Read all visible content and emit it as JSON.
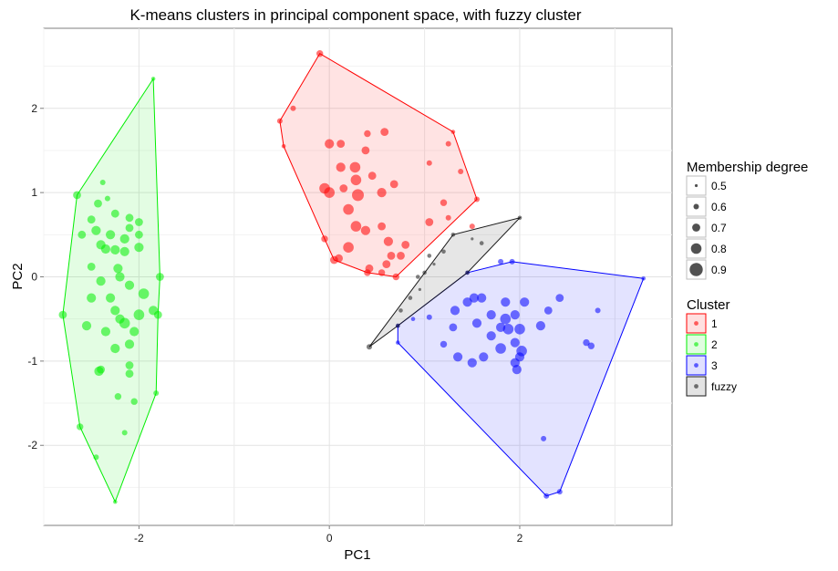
{
  "chart_data": {
    "type": "scatter",
    "title": "K-means clusters in principal component space, with fuzzy cluster",
    "xlabel": "PC1",
    "ylabel": "PC2",
    "xlim": [
      -3.0,
      3.6
    ],
    "ylim": [
      -2.95,
      2.95
    ],
    "xticks": [
      -2,
      0,
      2
    ],
    "yticks": [
      -2,
      -1,
      0,
      1,
      2
    ],
    "grid": true,
    "legend_position": "right",
    "size_legend": {
      "title": "Membership degree",
      "values": [
        0.5,
        0.6,
        0.7,
        0.8,
        0.9
      ]
    },
    "color_legend": {
      "title": "Cluster",
      "entries": [
        {
          "label": "1",
          "color": "#ff0000"
        },
        {
          "label": "2",
          "color": "#00ee00"
        },
        {
          "label": "3",
          "color": "#0000ff"
        },
        {
          "label": "fuzzy",
          "color": "#1a1a1a"
        }
      ]
    },
    "series": [
      {
        "name": "1",
        "color": "#ff0000",
        "hull": [
          [
            -0.1,
            2.65
          ],
          [
            -0.52,
            1.85
          ],
          [
            -0.48,
            1.55
          ],
          [
            -0.05,
            0.45
          ],
          [
            0.05,
            0.2
          ],
          [
            0.4,
            0.05
          ],
          [
            0.7,
            0.0
          ],
          [
            1.55,
            0.92
          ],
          [
            1.3,
            1.72
          ]
        ],
        "points": [
          [
            -0.1,
            2.65,
            0.65
          ],
          [
            -0.52,
            1.85,
            0.6
          ],
          [
            -0.38,
            2.0,
            0.6
          ],
          [
            -0.48,
            1.55,
            0.55
          ],
          [
            0.0,
            1.58,
            0.75
          ],
          [
            0.12,
            1.58,
            0.7
          ],
          [
            0.4,
            1.7,
            0.65
          ],
          [
            0.58,
            1.72,
            0.7
          ],
          [
            0.38,
            1.5,
            0.7
          ],
          [
            0.12,
            1.3,
            0.75
          ],
          [
            0.27,
            1.3,
            0.8
          ],
          [
            0.15,
            1.05,
            0.7
          ],
          [
            0.28,
            1.15,
            0.8
          ],
          [
            0.45,
            1.2,
            0.7
          ],
          [
            -0.05,
            1.05,
            0.8
          ],
          [
            0.0,
            1.0,
            0.8
          ],
          [
            0.3,
            0.97,
            0.85
          ],
          [
            0.55,
            1.0,
            0.75
          ],
          [
            0.68,
            1.1,
            0.7
          ],
          [
            1.05,
            1.35,
            0.6
          ],
          [
            1.25,
            1.58,
            0.6
          ],
          [
            1.3,
            1.72,
            0.55
          ],
          [
            1.38,
            1.25,
            0.6
          ],
          [
            1.2,
            0.88,
            0.65
          ],
          [
            1.25,
            0.7,
            0.6
          ],
          [
            1.05,
            0.65,
            0.7
          ],
          [
            0.2,
            0.8,
            0.8
          ],
          [
            0.38,
            0.55,
            0.75
          ],
          [
            0.28,
            0.6,
            0.8
          ],
          [
            0.55,
            0.6,
            0.7
          ],
          [
            0.62,
            0.42,
            0.75
          ],
          [
            -0.05,
            0.45,
            0.65
          ],
          [
            0.05,
            0.2,
            0.7
          ],
          [
            0.1,
            0.22,
            0.7
          ],
          [
            0.2,
            0.35,
            0.8
          ],
          [
            0.65,
            0.25,
            0.7
          ],
          [
            0.8,
            0.38,
            0.7
          ],
          [
            0.6,
            0.15,
            0.7
          ],
          [
            0.42,
            0.1,
            0.7
          ],
          [
            0.7,
            0.0,
            0.65
          ],
          [
            0.55,
            0.05,
            0.65
          ],
          [
            0.75,
            0.25,
            0.7
          ],
          [
            0.4,
            0.05,
            0.65
          ],
          [
            1.5,
            0.6,
            0.6
          ],
          [
            1.55,
            0.92,
            0.6
          ]
        ]
      },
      {
        "name": "2",
        "color": "#00ee00",
        "hull": [
          [
            -1.85,
            2.35
          ],
          [
            -2.65,
            0.97
          ],
          [
            -2.8,
            -0.45
          ],
          [
            -2.62,
            -1.78
          ],
          [
            -2.25,
            -2.67
          ],
          [
            -1.82,
            -1.38
          ],
          [
            -1.8,
            -0.45
          ],
          [
            -1.78,
            0.0
          ]
        ],
        "points": [
          [
            -1.85,
            2.35,
            0.55
          ],
          [
            -2.65,
            0.97,
            0.7
          ],
          [
            -2.38,
            1.12,
            0.6
          ],
          [
            -2.33,
            0.93,
            0.6
          ],
          [
            -2.43,
            0.87,
            0.7
          ],
          [
            -2.5,
            0.68,
            0.7
          ],
          [
            -2.25,
            0.75,
            0.7
          ],
          [
            -2.1,
            0.58,
            0.7
          ],
          [
            -2.1,
            0.7,
            0.7
          ],
          [
            -2.0,
            0.65,
            0.7
          ],
          [
            -2.0,
            0.5,
            0.7
          ],
          [
            -2.15,
            0.45,
            0.75
          ],
          [
            -2.3,
            0.5,
            0.75
          ],
          [
            -2.45,
            0.55,
            0.75
          ],
          [
            -2.6,
            0.5,
            0.7
          ],
          [
            -2.4,
            0.38,
            0.75
          ],
          [
            -2.35,
            0.33,
            0.75
          ],
          [
            -2.25,
            0.32,
            0.75
          ],
          [
            -2.15,
            0.3,
            0.75
          ],
          [
            -2.0,
            0.35,
            0.75
          ],
          [
            -2.22,
            0.1,
            0.75
          ],
          [
            -2.5,
            0.12,
            0.7
          ],
          [
            -2.2,
            0.0,
            0.75
          ],
          [
            -2.4,
            -0.05,
            0.75
          ],
          [
            -2.1,
            -0.1,
            0.75
          ],
          [
            -1.95,
            -0.2,
            0.8
          ],
          [
            -2.5,
            -0.25,
            0.75
          ],
          [
            -2.3,
            -0.25,
            0.75
          ],
          [
            -2.2,
            -0.5,
            0.75
          ],
          [
            -2.0,
            -0.45,
            0.8
          ],
          [
            -2.15,
            -0.55,
            0.8
          ],
          [
            -1.85,
            -0.4,
            0.75
          ],
          [
            -1.8,
            -0.45,
            0.7
          ],
          [
            -2.05,
            -0.65,
            0.75
          ],
          [
            -2.25,
            -0.4,
            0.75
          ],
          [
            -2.55,
            -0.58,
            0.75
          ],
          [
            -2.35,
            -0.65,
            0.75
          ],
          [
            -2.25,
            -0.85,
            0.75
          ],
          [
            -2.1,
            -0.8,
            0.75
          ],
          [
            -2.42,
            -1.12,
            0.75
          ],
          [
            -2.4,
            -1.1,
            0.7
          ],
          [
            -2.1,
            -1.05,
            0.7
          ],
          [
            -2.1,
            -1.15,
            0.7
          ],
          [
            -2.8,
            -0.45,
            0.7
          ],
          [
            -2.62,
            -1.78,
            0.65
          ],
          [
            -2.22,
            -1.42,
            0.65
          ],
          [
            -2.05,
            -1.48,
            0.65
          ],
          [
            -1.82,
            -1.38,
            0.6
          ],
          [
            -2.15,
            -1.85,
            0.6
          ],
          [
            -2.45,
            -2.14,
            0.6
          ],
          [
            -2.25,
            -2.67,
            0.55
          ],
          [
            -1.78,
            0.0,
            0.7
          ]
        ]
      },
      {
        "name": "3",
        "color": "#0000ff",
        "hull": [
          [
            0.72,
            -0.58
          ],
          [
            0.72,
            -0.78
          ],
          [
            2.28,
            -2.6
          ],
          [
            2.42,
            -2.55
          ],
          [
            3.3,
            -0.02
          ],
          [
            1.92,
            0.18
          ],
          [
            1.45,
            0.05
          ]
        ],
        "points": [
          [
            0.72,
            -0.58,
            0.55
          ],
          [
            0.72,
            -0.78,
            0.55
          ],
          [
            0.88,
            -0.5,
            0.55
          ],
          [
            1.05,
            -0.48,
            0.6
          ],
          [
            1.2,
            -0.8,
            0.65
          ],
          [
            1.32,
            -0.4,
            0.75
          ],
          [
            1.3,
            -0.6,
            0.7
          ],
          [
            1.45,
            -0.3,
            0.75
          ],
          [
            1.52,
            -0.25,
            0.75
          ],
          [
            1.6,
            -0.25,
            0.75
          ],
          [
            1.55,
            -0.55,
            0.75
          ],
          [
            1.7,
            -0.45,
            0.75
          ],
          [
            1.85,
            -0.3,
            0.75
          ],
          [
            1.85,
            -0.5,
            0.8
          ],
          [
            1.88,
            -0.62,
            0.8
          ],
          [
            1.8,
            -0.85,
            0.8
          ],
          [
            1.95,
            -0.45,
            0.75
          ],
          [
            1.95,
            -0.78,
            0.75
          ],
          [
            2.0,
            -0.62,
            0.8
          ],
          [
            2.02,
            -0.88,
            0.8
          ],
          [
            2.0,
            -0.95,
            0.75
          ],
          [
            2.22,
            -0.58,
            0.75
          ],
          [
            2.3,
            -0.4,
            0.7
          ],
          [
            2.42,
            -0.25,
            0.7
          ],
          [
            2.7,
            -0.78,
            0.65
          ],
          [
            2.75,
            -0.82,
            0.65
          ],
          [
            2.82,
            -0.4,
            0.6
          ],
          [
            1.35,
            -0.95,
            0.75
          ],
          [
            1.5,
            -1.02,
            0.75
          ],
          [
            1.62,
            -0.95,
            0.75
          ],
          [
            1.95,
            -1.02,
            0.75
          ],
          [
            1.97,
            -1.1,
            0.75
          ],
          [
            1.8,
            0.18,
            0.6
          ],
          [
            1.92,
            0.18,
            0.6
          ],
          [
            1.45,
            0.05,
            0.55
          ],
          [
            3.3,
            -0.02,
            0.55
          ],
          [
            2.25,
            -1.92,
            0.6
          ],
          [
            2.28,
            -2.6,
            0.6
          ],
          [
            2.42,
            -2.55,
            0.6
          ],
          [
            1.8,
            -0.6,
            0.75
          ],
          [
            2.05,
            -0.3,
            0.75
          ],
          [
            1.7,
            -0.7,
            0.75
          ]
        ]
      },
      {
        "name": "fuzzy",
        "color": "#1a1a1a",
        "hull": [
          [
            0.42,
            -0.83
          ],
          [
            0.72,
            -0.58
          ],
          [
            1.45,
            0.05
          ],
          [
            2.0,
            0.7
          ],
          [
            1.3,
            0.5
          ]
        ],
        "points": [
          [
            0.42,
            -0.83,
            0.6
          ],
          [
            0.72,
            -0.58,
            0.55
          ],
          [
            0.75,
            -0.4,
            0.55
          ],
          [
            0.85,
            -0.25,
            0.55
          ],
          [
            0.95,
            -0.15,
            0.5
          ],
          [
            0.93,
            0.0,
            0.55
          ],
          [
            1.0,
            0.05,
            0.55
          ],
          [
            1.1,
            0.15,
            0.5
          ],
          [
            1.05,
            0.25,
            0.55
          ],
          [
            1.2,
            0.3,
            0.55
          ],
          [
            1.3,
            0.5,
            0.55
          ],
          [
            1.5,
            0.45,
            0.5
          ],
          [
            1.45,
            0.05,
            0.55
          ],
          [
            1.6,
            0.4,
            0.55
          ],
          [
            2.0,
            0.7,
            0.55
          ]
        ]
      }
    ]
  }
}
